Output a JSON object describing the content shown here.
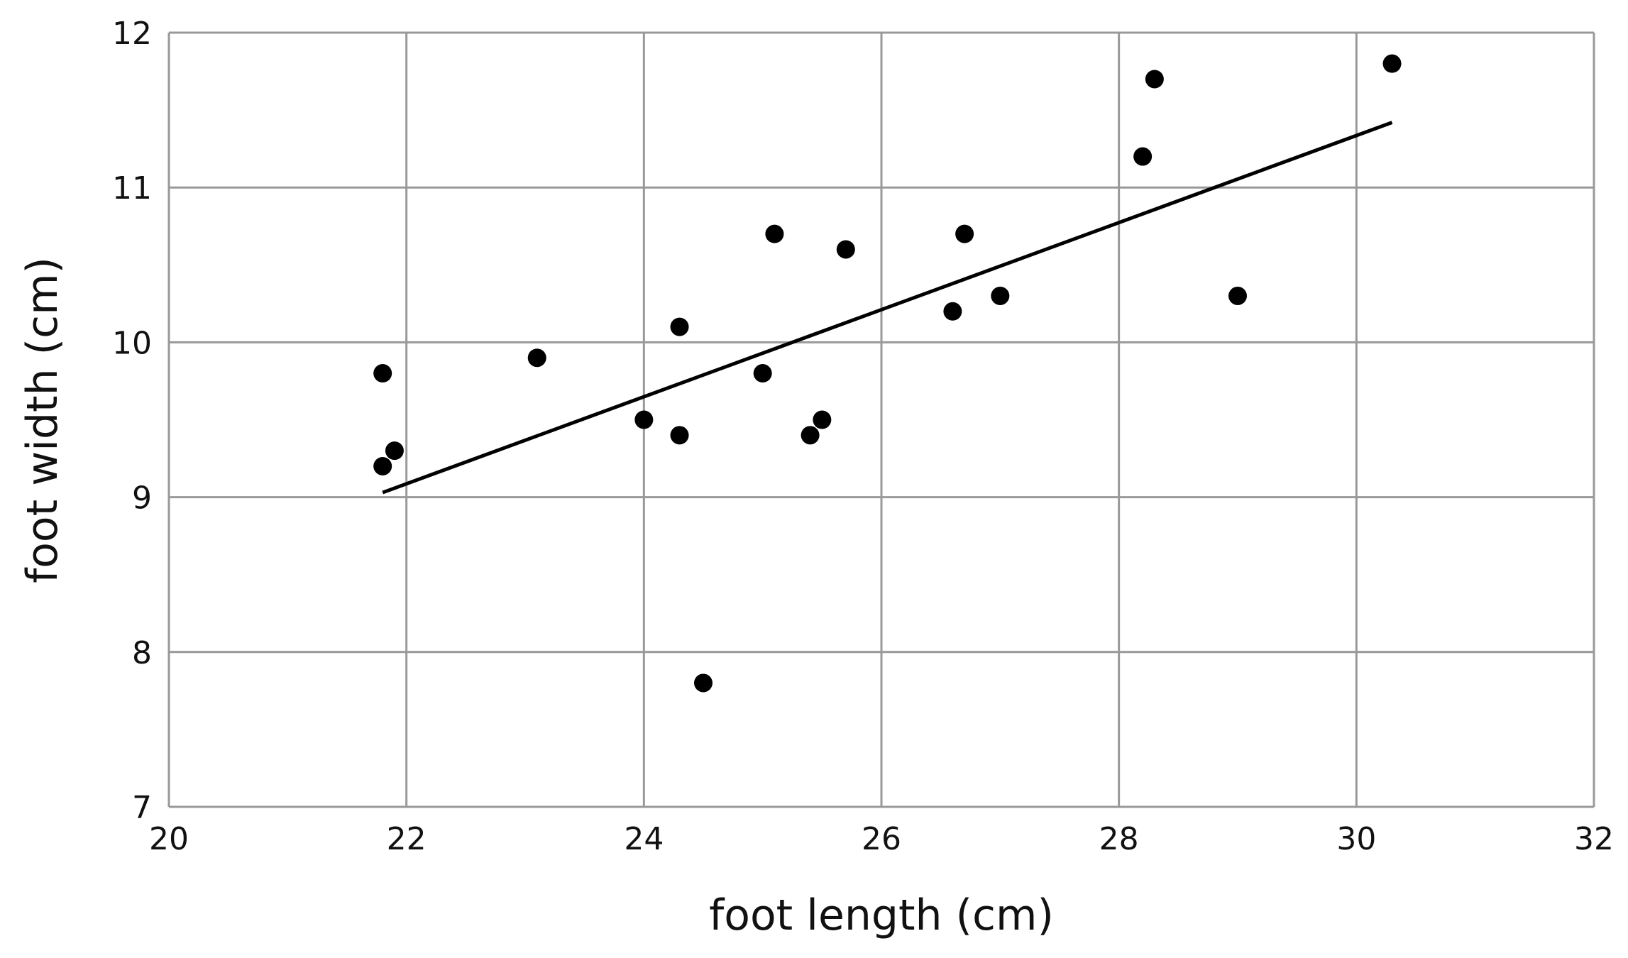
{
  "chart_data": {
    "type": "scatter",
    "title": "",
    "xlabel": "foot length (cm)",
    "ylabel": "foot width (cm)",
    "xlim": [
      20,
      32
    ],
    "ylim": [
      7,
      12
    ],
    "xticks": [
      20,
      22,
      24,
      26,
      28,
      30,
      32
    ],
    "yticks": [
      7,
      8,
      9,
      10,
      11,
      12
    ],
    "grid": true,
    "points": [
      {
        "x": 21.8,
        "y": 9.8
      },
      {
        "x": 21.8,
        "y": 9.2
      },
      {
        "x": 21.9,
        "y": 9.3
      },
      {
        "x": 23.1,
        "y": 9.9
      },
      {
        "x": 24.0,
        "y": 9.5
      },
      {
        "x": 24.3,
        "y": 10.1
      },
      {
        "x": 24.3,
        "y": 9.4
      },
      {
        "x": 24.5,
        "y": 7.8
      },
      {
        "x": 25.0,
        "y": 9.8
      },
      {
        "x": 25.1,
        "y": 10.7
      },
      {
        "x": 25.4,
        "y": 9.4
      },
      {
        "x": 25.5,
        "y": 9.5
      },
      {
        "x": 25.7,
        "y": 10.6
      },
      {
        "x": 26.6,
        "y": 10.2
      },
      {
        "x": 26.7,
        "y": 10.7
      },
      {
        "x": 27.0,
        "y": 10.3
      },
      {
        "x": 28.2,
        "y": 11.2
      },
      {
        "x": 28.3,
        "y": 11.7
      },
      {
        "x": 29.0,
        "y": 10.3
      },
      {
        "x": 30.3,
        "y": 11.8
      }
    ],
    "trend_line": {
      "x": [
        21.8,
        30.3
      ],
      "y": [
        9.03,
        11.42
      ]
    },
    "colors": {
      "points": "#000000",
      "line": "#000000",
      "grid": "#999999"
    }
  }
}
